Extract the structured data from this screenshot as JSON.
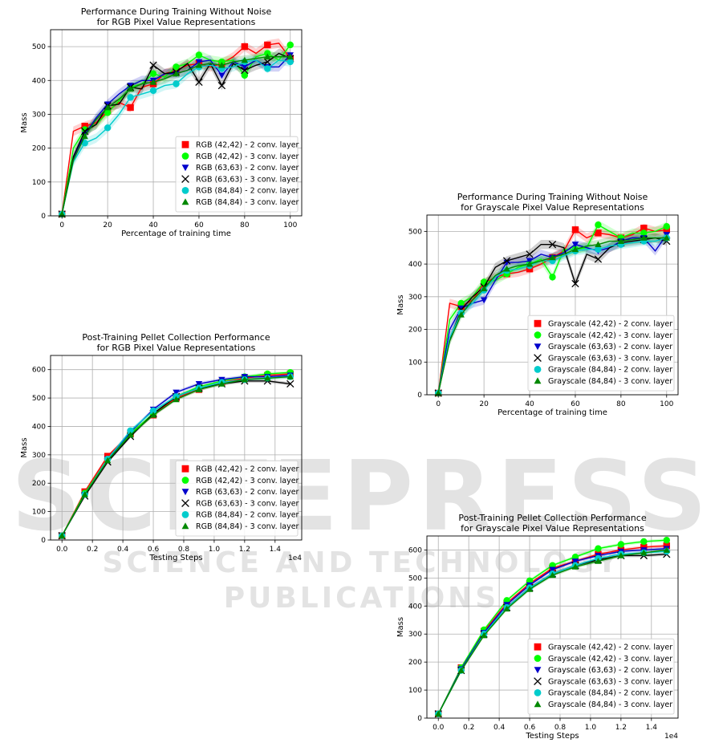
{
  "watermark": {
    "big": "SCITEPRESS",
    "small": "SCIENCE AND TECHNOLOGY PUBLICATIONS"
  },
  "colors": [
    "#ff0000",
    "#00ff00",
    "#0000cc",
    "#000000",
    "#00cccc",
    "#008800"
  ],
  "markers": [
    "square",
    "circle",
    "triangle-down",
    "x",
    "circle",
    "triangle-up"
  ],
  "chart_data": [
    {
      "type": "line",
      "title": "Performance During Training Without Noise",
      "subtitle": "for RGB Pixel Value Representations",
      "xlabel": "Percentage of training time",
      "ylabel": "Mass",
      "xlim": [
        -5,
        105
      ],
      "ylim": [
        0,
        550
      ],
      "xticks": [
        0,
        20,
        40,
        60,
        80,
        100
      ],
      "yticks": [
        0,
        100,
        200,
        300,
        400,
        500
      ],
      "exponent": "",
      "grid": true,
      "legend": "lower-right",
      "x": [
        0,
        5,
        10,
        15,
        20,
        25,
        30,
        35,
        40,
        45,
        50,
        55,
        60,
        65,
        70,
        75,
        80,
        85,
        90,
        95,
        100
      ],
      "series": [
        {
          "name": "RGB (42,42) - 2 conv. layer",
          "values": [
            5,
            250,
            265,
            275,
            310,
            335,
            320,
            380,
            390,
            420,
            430,
            445,
            450,
            440,
            450,
            470,
            500,
            480,
            505,
            510,
            465
          ]
        },
        {
          "name": "RGB (42,42) - 3 conv. layer",
          "values": [
            5,
            200,
            255,
            270,
            305,
            340,
            380,
            390,
            420,
            410,
            440,
            450,
            475,
            460,
            455,
            460,
            415,
            470,
            480,
            460,
            505
          ]
        },
        {
          "name": "RGB (63,63) - 2 conv. layer",
          "values": [
            5,
            170,
            240,
            290,
            330,
            360,
            385,
            400,
            400,
            420,
            420,
            430,
            455,
            460,
            415,
            455,
            440,
            460,
            440,
            440,
            475
          ]
        },
        {
          "name": "RGB (63,63) - 3 conv. layer",
          "values": [
            5,
            175,
            250,
            270,
            325,
            330,
            380,
            375,
            445,
            420,
            425,
            450,
            395,
            450,
            385,
            450,
            430,
            445,
            455,
            480,
            465
          ]
        },
        {
          "name": "RGB (84,84) - 2 conv. layer",
          "values": [
            5,
            160,
            215,
            230,
            260,
            300,
            350,
            360,
            370,
            385,
            390,
            420,
            440,
            445,
            435,
            440,
            455,
            460,
            435,
            460,
            455
          ]
        },
        {
          "name": "RGB (84,84) - 3 conv. layer",
          "values": [
            5,
            165,
            235,
            285,
            320,
            345,
            375,
            390,
            395,
            405,
            420,
            430,
            445,
            450,
            445,
            455,
            460,
            465,
            470,
            470,
            470
          ]
        }
      ]
    },
    {
      "type": "line",
      "title": "Performance During Training Without Noise",
      "subtitle": "for Grayscale Pixel Value Representations",
      "xlabel": "Percentage of training time",
      "ylabel": "Mass",
      "xlim": [
        -5,
        105
      ],
      "ylim": [
        0,
        550
      ],
      "xticks": [
        0,
        20,
        40,
        60,
        80,
        100
      ],
      "yticks": [
        0,
        100,
        200,
        300,
        400,
        500
      ],
      "exponent": "",
      "grid": true,
      "legend": "lower-right",
      "x": [
        0,
        5,
        10,
        15,
        20,
        25,
        30,
        35,
        40,
        45,
        50,
        55,
        60,
        65,
        70,
        75,
        80,
        85,
        90,
        95,
        100
      ],
      "series": [
        {
          "name": "Grayscale (42,42) - 2 conv. layer",
          "values": [
            5,
            280,
            270,
            290,
            340,
            360,
            370,
            375,
            385,
            400,
            420,
            440,
            505,
            480,
            495,
            490,
            480,
            490,
            510,
            500,
            505
          ]
        },
        {
          "name": "Grayscale (42,42) - 3 conv. layer",
          "values": [
            5,
            230,
            280,
            300,
            345,
            350,
            370,
            390,
            400,
            415,
            360,
            445,
            445,
            450,
            520,
            500,
            480,
            495,
            495,
            500,
            515
          ]
        },
        {
          "name": "Grayscale (63,63) - 2 conv. layer",
          "values": [
            5,
            200,
            265,
            280,
            290,
            350,
            405,
            405,
            410,
            430,
            420,
            435,
            460,
            450,
            440,
            450,
            470,
            480,
            480,
            440,
            490
          ]
        },
        {
          "name": "Grayscale (63,63) - 3 conv. layer",
          "values": [
            5,
            170,
            260,
            300,
            330,
            390,
            410,
            420,
            430,
            460,
            460,
            450,
            340,
            430,
            415,
            450,
            465,
            470,
            475,
            480,
            470
          ]
        },
        {
          "name": "Grayscale (84,84) - 2 conv. layer",
          "values": [
            5,
            175,
            250,
            280,
            320,
            360,
            380,
            385,
            395,
            410,
            410,
            425,
            440,
            445,
            445,
            455,
            460,
            465,
            470,
            470,
            480
          ]
        },
        {
          "name": "Grayscale (84,84) - 3 conv. layer",
          "values": [
            5,
            165,
            245,
            290,
            325,
            365,
            385,
            395,
            400,
            410,
            420,
            430,
            445,
            455,
            460,
            470,
            470,
            475,
            480,
            480,
            480
          ]
        }
      ]
    },
    {
      "type": "line",
      "title": "Post-Training Pellet Collection Performance",
      "subtitle": "for RGB Pixel Value Representations",
      "xlabel": "Testing Steps",
      "ylabel": "Mass",
      "xlim": [
        -0.075,
        1.575
      ],
      "ylim": [
        0,
        650
      ],
      "xticks": [
        0.0,
        0.2,
        0.4,
        0.6,
        0.8,
        1.0,
        1.2,
        1.4
      ],
      "yticks": [
        0,
        100,
        200,
        300,
        400,
        500,
        600
      ],
      "exponent": "1e4",
      "grid": true,
      "legend": "lower-right",
      "x": [
        0,
        0.15,
        0.3,
        0.45,
        0.6,
        0.75,
        0.9,
        1.05,
        1.2,
        1.35,
        1.5
      ],
      "series": [
        {
          "name": "RGB (42,42) - 2 conv. layer",
          "values": [
            15,
            170,
            295,
            375,
            440,
            500,
            530,
            555,
            570,
            580,
            585
          ]
        },
        {
          "name": "RGB (42,42) - 3 conv. layer",
          "values": [
            15,
            165,
            285,
            375,
            445,
            505,
            540,
            560,
            575,
            585,
            590
          ]
        },
        {
          "name": "RGB (63,63) - 2 conv. layer",
          "values": [
            15,
            160,
            285,
            380,
            460,
            520,
            550,
            565,
            575,
            575,
            580
          ]
        },
        {
          "name": "RGB (63,63) - 3 conv. layer",
          "values": [
            15,
            155,
            275,
            365,
            445,
            505,
            535,
            550,
            560,
            560,
            550
          ]
        },
        {
          "name": "RGB (84,84) - 2 conv. layer",
          "values": [
            15,
            160,
            285,
            385,
            455,
            505,
            535,
            555,
            565,
            570,
            575
          ]
        },
        {
          "name": "RGB (84,84) - 3 conv. layer",
          "values": [
            15,
            160,
            280,
            370,
            440,
            495,
            530,
            550,
            565,
            570,
            575
          ]
        }
      ]
    },
    {
      "type": "line",
      "title": "Post-Training Pellet Collection Performance",
      "subtitle": "for Grayscale Pixel Value Representations",
      "xlabel": "Testing Steps",
      "ylabel": "Mass",
      "xlim": [
        -0.075,
        1.575
      ],
      "ylim": [
        0,
        650
      ],
      "xticks": [
        0.0,
        0.2,
        0.4,
        0.6,
        0.8,
        1.0,
        1.2,
        1.4
      ],
      "yticks": [
        0,
        100,
        200,
        300,
        400,
        500,
        600
      ],
      "exponent": "1e4",
      "grid": true,
      "legend": "lower-right",
      "x": [
        0,
        0.15,
        0.3,
        0.45,
        0.6,
        0.75,
        0.9,
        1.05,
        1.2,
        1.35,
        1.5
      ],
      "series": [
        {
          "name": "Grayscale (42,42) - 2 conv. layer",
          "values": [
            15,
            180,
            310,
            410,
            480,
            535,
            560,
            585,
            600,
            610,
            615
          ]
        },
        {
          "name": "Grayscale (42,42) - 3 conv. layer",
          "values": [
            15,
            180,
            315,
            420,
            490,
            545,
            575,
            605,
            620,
            630,
            635
          ]
        },
        {
          "name": "Grayscale (63,63) - 2 conv. layer",
          "values": [
            15,
            175,
            305,
            405,
            475,
            530,
            560,
            580,
            595,
            600,
            605
          ]
        },
        {
          "name": "Grayscale (63,63) - 3 conv. layer",
          "values": [
            15,
            170,
            300,
            395,
            465,
            515,
            545,
            565,
            580,
            580,
            585
          ]
        },
        {
          "name": "Grayscale (84,84) - 2 conv. layer",
          "values": [
            15,
            170,
            300,
            395,
            465,
            515,
            545,
            570,
            585,
            590,
            595
          ]
        },
        {
          "name": "Grayscale (84,84) - 3 conv. layer",
          "values": [
            15,
            170,
            295,
            390,
            460,
            510,
            540,
            560,
            580,
            590,
            600
          ]
        }
      ]
    }
  ]
}
